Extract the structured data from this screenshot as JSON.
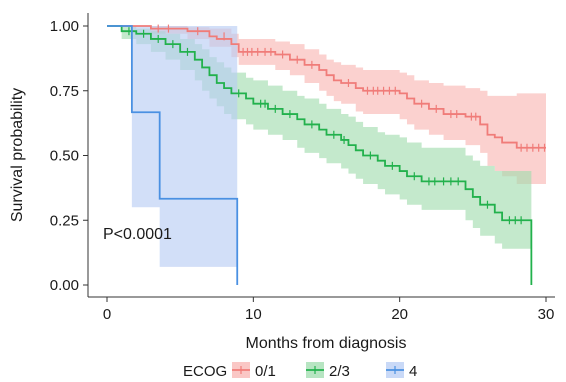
{
  "chart_data": {
    "type": "line",
    "subtype": "kaplan-meier",
    "xlabel": "Months from diagnosis",
    "ylabel": "Survival probability",
    "xlim": [
      0,
      30
    ],
    "ylim": [
      0,
      1
    ],
    "xticks": [
      0,
      10,
      20,
      30
    ],
    "yticks": [
      0.0,
      0.25,
      0.5,
      0.75,
      1.0
    ],
    "ytick_labels": [
      "0.00",
      "0.25",
      "0.50",
      "0.75",
      "1.00"
    ],
    "grid": false,
    "annotation": "P<0.0001",
    "legend": {
      "title": "ECOG",
      "position": "bottom"
    },
    "series": [
      {
        "name": "0/1",
        "color": "#F07C79",
        "fill": "#F8B4B1",
        "steps": [
          [
            0,
            1.0
          ],
          [
            3.0,
            0.99
          ],
          [
            5.5,
            0.98
          ],
          [
            7.0,
            0.96
          ],
          [
            7.5,
            0.95
          ],
          [
            8.5,
            0.93
          ],
          [
            9.0,
            0.9
          ],
          [
            11.5,
            0.89
          ],
          [
            12.5,
            0.87
          ],
          [
            13.5,
            0.85
          ],
          [
            14.5,
            0.83
          ],
          [
            15.0,
            0.81
          ],
          [
            15.5,
            0.79
          ],
          [
            16.0,
            0.78
          ],
          [
            17.0,
            0.76
          ],
          [
            17.5,
            0.75
          ],
          [
            20.0,
            0.74
          ],
          [
            20.5,
            0.72
          ],
          [
            21.0,
            0.7
          ],
          [
            22.0,
            0.68
          ],
          [
            23.0,
            0.66
          ],
          [
            24.5,
            0.65
          ],
          [
            25.5,
            0.62
          ],
          [
            26.0,
            0.58
          ],
          [
            26.5,
            0.57
          ],
          [
            27.0,
            0.55
          ],
          [
            28.0,
            0.53
          ],
          [
            30.0,
            0.53
          ]
        ],
        "upper": [
          [
            0,
            1.0
          ],
          [
            3.0,
            1.0
          ],
          [
            5.5,
            0.995
          ],
          [
            7.0,
            0.99
          ],
          [
            8.5,
            0.97
          ],
          [
            9.0,
            0.95
          ],
          [
            11.5,
            0.94
          ],
          [
            12.5,
            0.93
          ],
          [
            13.5,
            0.91
          ],
          [
            14.5,
            0.89
          ],
          [
            15.0,
            0.87
          ],
          [
            15.5,
            0.86
          ],
          [
            16.0,
            0.85
          ],
          [
            17.0,
            0.84
          ],
          [
            17.5,
            0.83
          ],
          [
            20.0,
            0.82
          ],
          [
            20.5,
            0.81
          ],
          [
            21.0,
            0.79
          ],
          [
            22.0,
            0.78
          ],
          [
            23.0,
            0.77
          ],
          [
            24.5,
            0.76
          ],
          [
            25.5,
            0.75
          ],
          [
            26.0,
            0.73
          ],
          [
            27.0,
            0.73
          ],
          [
            28.0,
            0.74
          ],
          [
            30.0,
            0.74
          ]
        ],
        "lower": [
          [
            0,
            1.0
          ],
          [
            3.0,
            0.97
          ],
          [
            5.5,
            0.95
          ],
          [
            7.0,
            0.92
          ],
          [
            8.5,
            0.88
          ],
          [
            9.0,
            0.85
          ],
          [
            11.5,
            0.83
          ],
          [
            12.5,
            0.81
          ],
          [
            13.5,
            0.78
          ],
          [
            14.5,
            0.75
          ],
          [
            15.0,
            0.73
          ],
          [
            15.5,
            0.71
          ],
          [
            16.0,
            0.7
          ],
          [
            17.0,
            0.67
          ],
          [
            17.5,
            0.66
          ],
          [
            20.0,
            0.64
          ],
          [
            20.5,
            0.62
          ],
          [
            21.0,
            0.6
          ],
          [
            22.0,
            0.58
          ],
          [
            23.0,
            0.56
          ],
          [
            24.5,
            0.54
          ],
          [
            25.5,
            0.51
          ],
          [
            26.0,
            0.46
          ],
          [
            26.5,
            0.44
          ],
          [
            27.0,
            0.42
          ],
          [
            28.0,
            0.39
          ],
          [
            30.0,
            0.39
          ]
        ],
        "censors": [
          [
            3.5,
            0.99
          ],
          [
            4.2,
            0.99
          ],
          [
            6.2,
            0.98
          ],
          [
            8.0,
            0.96
          ],
          [
            9.3,
            0.9
          ],
          [
            9.6,
            0.9
          ],
          [
            9.9,
            0.9
          ],
          [
            10.3,
            0.9
          ],
          [
            10.8,
            0.9
          ],
          [
            11.2,
            0.9
          ],
          [
            12.0,
            0.89
          ],
          [
            13.0,
            0.87
          ],
          [
            14.0,
            0.85
          ],
          [
            16.5,
            0.78
          ],
          [
            17.8,
            0.75
          ],
          [
            18.2,
            0.75
          ],
          [
            18.5,
            0.75
          ],
          [
            18.9,
            0.75
          ],
          [
            19.3,
            0.75
          ],
          [
            19.7,
            0.75
          ],
          [
            21.5,
            0.7
          ],
          [
            22.5,
            0.68
          ],
          [
            23.5,
            0.66
          ],
          [
            23.9,
            0.66
          ],
          [
            24.9,
            0.65
          ],
          [
            25.2,
            0.65
          ],
          [
            28.3,
            0.53
          ],
          [
            28.7,
            0.53
          ],
          [
            29.1,
            0.53
          ],
          [
            29.5,
            0.53
          ],
          [
            29.9,
            0.53
          ]
        ]
      },
      {
        "name": "2/3",
        "color": "#22B14C",
        "fill": "#9FDCAD",
        "steps": [
          [
            0,
            1.0
          ],
          [
            1.0,
            0.98
          ],
          [
            2.0,
            0.97
          ],
          [
            3.0,
            0.95
          ],
          [
            4.0,
            0.93
          ],
          [
            5.0,
            0.9
          ],
          [
            6.0,
            0.87
          ],
          [
            6.5,
            0.84
          ],
          [
            7.0,
            0.81
          ],
          [
            7.5,
            0.78
          ],
          [
            8.0,
            0.76
          ],
          [
            8.5,
            0.74
          ],
          [
            9.5,
            0.72
          ],
          [
            10.0,
            0.7
          ],
          [
            11.0,
            0.68
          ],
          [
            12.0,
            0.66
          ],
          [
            13.0,
            0.64
          ],
          [
            13.5,
            0.62
          ],
          [
            14.5,
            0.6
          ],
          [
            15.0,
            0.58
          ],
          [
            16.0,
            0.56
          ],
          [
            16.5,
            0.54
          ],
          [
            17.0,
            0.52
          ],
          [
            17.5,
            0.5
          ],
          [
            18.5,
            0.48
          ],
          [
            19.0,
            0.46
          ],
          [
            20.0,
            0.44
          ],
          [
            20.5,
            0.42
          ],
          [
            21.5,
            0.4
          ],
          [
            24.5,
            0.37
          ],
          [
            25.0,
            0.34
          ],
          [
            25.5,
            0.31
          ],
          [
            26.5,
            0.28
          ],
          [
            27.0,
            0.25
          ],
          [
            29.0,
            0.0
          ]
        ],
        "upper": [
          [
            0,
            1.0
          ],
          [
            1.0,
            1.0
          ],
          [
            2.0,
            0.99
          ],
          [
            3.0,
            0.98
          ],
          [
            4.0,
            0.97
          ],
          [
            5.0,
            0.95
          ],
          [
            6.0,
            0.93
          ],
          [
            6.5,
            0.91
          ],
          [
            7.0,
            0.88
          ],
          [
            7.5,
            0.86
          ],
          [
            8.0,
            0.84
          ],
          [
            8.5,
            0.82
          ],
          [
            9.5,
            0.8
          ],
          [
            10.0,
            0.79
          ],
          [
            11.0,
            0.77
          ],
          [
            12.0,
            0.75
          ],
          [
            13.0,
            0.73
          ],
          [
            13.5,
            0.72
          ],
          [
            14.5,
            0.7
          ],
          [
            15.0,
            0.68
          ],
          [
            16.0,
            0.66
          ],
          [
            16.5,
            0.65
          ],
          [
            17.0,
            0.63
          ],
          [
            17.5,
            0.61
          ],
          [
            18.5,
            0.59
          ],
          [
            19.0,
            0.58
          ],
          [
            20.0,
            0.57
          ],
          [
            20.5,
            0.55
          ],
          [
            21.5,
            0.53
          ],
          [
            24.5,
            0.5
          ],
          [
            25.0,
            0.48
          ],
          [
            25.5,
            0.46
          ],
          [
            26.5,
            0.44
          ],
          [
            27.0,
            0.44
          ],
          [
            29.0,
            0.44
          ]
        ],
        "lower": [
          [
            0,
            1.0
          ],
          [
            1.0,
            0.95
          ],
          [
            2.0,
            0.93
          ],
          [
            3.0,
            0.9
          ],
          [
            4.0,
            0.87
          ],
          [
            5.0,
            0.83
          ],
          [
            6.0,
            0.79
          ],
          [
            6.5,
            0.75
          ],
          [
            7.0,
            0.72
          ],
          [
            7.5,
            0.69
          ],
          [
            8.0,
            0.66
          ],
          [
            8.5,
            0.64
          ],
          [
            9.5,
            0.62
          ],
          [
            10.0,
            0.6
          ],
          [
            11.0,
            0.58
          ],
          [
            12.0,
            0.56
          ],
          [
            13.0,
            0.53
          ],
          [
            13.5,
            0.51
          ],
          [
            14.5,
            0.49
          ],
          [
            15.0,
            0.47
          ],
          [
            16.0,
            0.45
          ],
          [
            16.5,
            0.43
          ],
          [
            17.0,
            0.41
          ],
          [
            17.5,
            0.39
          ],
          [
            18.5,
            0.37
          ],
          [
            19.0,
            0.35
          ],
          [
            20.0,
            0.33
          ],
          [
            20.5,
            0.31
          ],
          [
            21.5,
            0.29
          ],
          [
            24.5,
            0.25
          ],
          [
            25.0,
            0.22
          ],
          [
            25.5,
            0.19
          ],
          [
            26.5,
            0.16
          ],
          [
            27.0,
            0.14
          ],
          [
            29.0,
            0.14
          ]
        ],
        "censors": [
          [
            1.5,
            0.98
          ],
          [
            2.5,
            0.97
          ],
          [
            3.5,
            0.95
          ],
          [
            4.5,
            0.93
          ],
          [
            5.5,
            0.9
          ],
          [
            9.0,
            0.74
          ],
          [
            10.5,
            0.7
          ],
          [
            10.8,
            0.7
          ],
          [
            11.5,
            0.68
          ],
          [
            12.5,
            0.66
          ],
          [
            14.0,
            0.62
          ],
          [
            15.5,
            0.58
          ],
          [
            16.2,
            0.56
          ],
          [
            18.0,
            0.5
          ],
          [
            19.5,
            0.46
          ],
          [
            21.0,
            0.42
          ],
          [
            22.0,
            0.4
          ],
          [
            22.4,
            0.4
          ],
          [
            23.0,
            0.4
          ],
          [
            23.5,
            0.4
          ],
          [
            24.0,
            0.4
          ],
          [
            26.0,
            0.31
          ],
          [
            27.5,
            0.25
          ],
          [
            27.9,
            0.25
          ],
          [
            28.3,
            0.25
          ]
        ]
      },
      {
        "name": "4",
        "color": "#4A90E2",
        "fill": "#B7CCF4",
        "steps": [
          [
            0,
            1.0
          ],
          [
            1.7,
            0.667
          ],
          [
            3.6,
            0.333
          ],
          [
            8.9,
            0.0
          ]
        ],
        "upper": [
          [
            0,
            1.0
          ],
          [
            1.7,
            1.0
          ],
          [
            3.6,
            1.0
          ],
          [
            8.9,
            1.0
          ]
        ],
        "lower": [
          [
            0,
            1.0
          ],
          [
            1.7,
            0.3
          ],
          [
            3.6,
            0.07
          ],
          [
            8.9,
            0.07
          ]
        ],
        "censors": []
      }
    ]
  }
}
